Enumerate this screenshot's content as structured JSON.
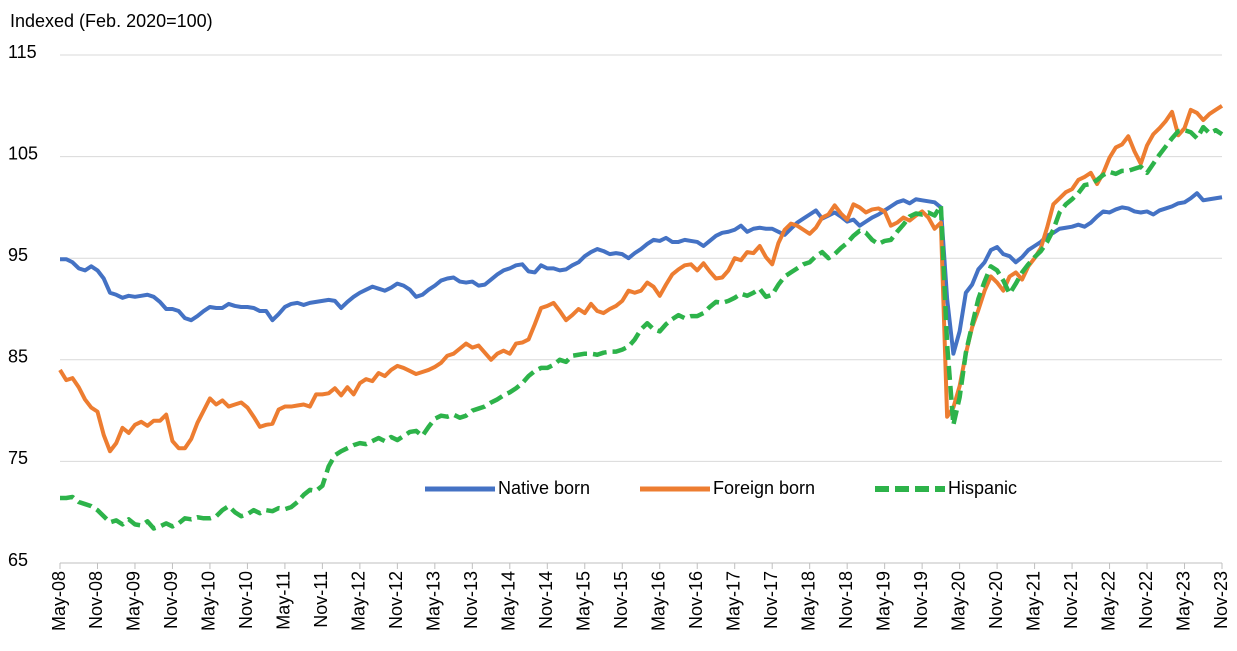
{
  "chart_data": {
    "type": "line",
    "ylabel": "Indexed (Feb. 2020=100)",
    "ylim": [
      65,
      115
    ],
    "yticks": [
      65,
      75,
      85,
      95,
      105,
      115
    ],
    "grid": true,
    "legend": "bottom",
    "categories": [
      "May-08",
      null,
      null,
      null,
      null,
      null,
      "Nov-08",
      null,
      null,
      null,
      null,
      null,
      "May-09",
      null,
      null,
      null,
      null,
      null,
      "Nov-09",
      null,
      null,
      null,
      null,
      null,
      "May-10",
      null,
      null,
      null,
      null,
      null,
      "Nov-10",
      null,
      null,
      null,
      null,
      null,
      "May-11",
      null,
      null,
      null,
      null,
      null,
      "Nov-11",
      null,
      null,
      null,
      null,
      null,
      "May-12",
      null,
      null,
      null,
      null,
      null,
      "Nov-12",
      null,
      null,
      null,
      null,
      null,
      "May-13",
      null,
      null,
      null,
      null,
      null,
      "Nov-13",
      null,
      null,
      null,
      null,
      null,
      "May-14",
      null,
      null,
      null,
      null,
      null,
      "Nov-14",
      null,
      null,
      null,
      null,
      null,
      "May-15",
      null,
      null,
      null,
      null,
      null,
      "Nov-15",
      null,
      null,
      null,
      null,
      null,
      "May-16",
      null,
      null,
      null,
      null,
      null,
      "Nov-16",
      null,
      null,
      null,
      null,
      null,
      "May-17",
      null,
      null,
      null,
      null,
      null,
      "Nov-17",
      null,
      null,
      null,
      null,
      null,
      "May-18",
      null,
      null,
      null,
      null,
      null,
      "Nov-18",
      null,
      null,
      null,
      null,
      null,
      "May-19",
      null,
      null,
      null,
      null,
      null,
      "Nov-19",
      null,
      null,
      null,
      null,
      null,
      "May-20",
      null,
      null,
      null,
      null,
      null,
      "Nov-20",
      null,
      null,
      null,
      null,
      null,
      "May-21",
      null,
      null,
      null,
      null,
      null,
      "Nov-21",
      null,
      null,
      null,
      null,
      null,
      "May-22",
      null,
      null,
      null,
      null,
      null,
      "Nov-22",
      null,
      null,
      null,
      null,
      null,
      "May-23",
      null,
      null,
      null,
      null,
      null,
      "Nov-23"
    ],
    "series": [
      {
        "name": "Native born",
        "color": "#4472c4",
        "dash": false,
        "values": [
          94.9,
          94.9,
          94.6,
          94.0,
          93.8,
          94.2,
          93.8,
          93.0,
          91.6,
          91.4,
          91.1,
          91.3,
          91.2,
          91.3,
          91.4,
          91.2,
          90.7,
          90.0,
          90.0,
          89.8,
          89.1,
          88.9,
          89.3,
          89.8,
          90.2,
          90.1,
          90.1,
          90.5,
          90.3,
          90.2,
          90.2,
          90.1,
          89.8,
          89.8,
          88.9,
          89.5,
          90.2,
          90.5,
          90.6,
          90.4,
          90.6,
          90.7,
          90.8,
          90.9,
          90.8,
          90.1,
          90.7,
          91.2,
          91.6,
          91.9,
          92.2,
          92.0,
          91.8,
          92.1,
          92.5,
          92.3,
          91.9,
          91.2,
          91.4,
          91.9,
          92.3,
          92.8,
          93.0,
          93.1,
          92.7,
          92.6,
          92.7,
          92.3,
          92.4,
          92.9,
          93.4,
          93.8,
          94.0,
          94.3,
          94.4,
          93.7,
          93.6,
          94.3,
          94.0,
          94.0,
          93.8,
          93.9,
          94.3,
          94.6,
          95.2,
          95.6,
          95.9,
          95.7,
          95.4,
          95.5,
          95.4,
          95.0,
          95.5,
          95.9,
          96.4,
          96.8,
          96.7,
          97.0,
          96.6,
          96.6,
          96.8,
          96.7,
          96.6,
          96.2,
          96.7,
          97.2,
          97.5,
          97.6,
          97.8,
          98.2,
          97.6,
          97.9,
          98.0,
          97.9,
          97.9,
          97.6,
          97.3,
          97.9,
          98.5,
          98.9,
          99.3,
          99.7,
          98.9,
          99.2,
          99.5,
          99.1,
          98.6,
          98.8,
          98.2,
          98.6,
          99.0,
          99.3,
          99.7,
          100.1,
          100.5,
          100.7,
          100.4,
          100.8,
          100.7,
          100.6,
          100.5,
          100.0,
          91.0,
          85.6,
          87.8,
          91.6,
          92.4,
          93.9,
          94.6,
          95.8,
          96.1,
          95.4,
          95.2,
          94.6,
          95.1,
          95.8,
          96.2,
          96.6,
          97.2,
          97.5,
          97.9,
          98.0,
          98.1,
          98.3,
          98.1,
          98.5,
          99.1,
          99.6,
          99.5,
          99.8,
          100.0,
          99.9,
          99.6,
          99.5,
          99.6,
          99.3,
          99.7,
          99.9,
          100.1,
          100.4,
          100.5,
          100.9,
          101.4,
          100.7,
          100.8,
          100.9,
          101.0
        ]
      },
      {
        "name": "Foreign born",
        "color": "#ed7d31",
        "dash": false,
        "values": [
          84.0,
          83.0,
          83.2,
          82.3,
          81.1,
          80.3,
          79.9,
          77.6,
          76.0,
          76.8,
          78.3,
          77.8,
          78.6,
          78.9,
          78.5,
          79.0,
          79.0,
          79.6,
          77.0,
          76.3,
          76.3,
          77.2,
          78.8,
          80.0,
          81.2,
          80.6,
          81.0,
          80.4,
          80.6,
          80.8,
          80.3,
          79.4,
          78.4,
          78.6,
          78.7,
          80.1,
          80.4,
          80.4,
          80.5,
          80.6,
          80.4,
          81.6,
          81.6,
          81.7,
          82.2,
          81.5,
          82.3,
          81.6,
          82.7,
          83.1,
          82.9,
          83.7,
          83.4,
          84.0,
          84.4,
          84.2,
          83.9,
          83.6,
          83.8,
          84.0,
          84.3,
          84.7,
          85.4,
          85.6,
          86.1,
          86.6,
          86.2,
          86.4,
          85.7,
          85.0,
          85.6,
          85.9,
          85.6,
          86.6,
          86.7,
          87.0,
          88.5,
          90.1,
          90.3,
          90.6,
          89.8,
          88.9,
          89.4,
          90.0,
          89.6,
          90.5,
          89.8,
          89.6,
          90.0,
          90.3,
          90.8,
          91.8,
          91.6,
          91.8,
          92.6,
          92.2,
          91.3,
          92.4,
          93.4,
          93.9,
          94.3,
          94.4,
          93.8,
          94.5,
          93.7,
          93.0,
          93.1,
          93.8,
          95.0,
          94.8,
          95.6,
          95.5,
          96.2,
          95.1,
          94.4,
          96.5,
          97.8,
          98.4,
          98.2,
          97.8,
          97.4,
          98.0,
          99.0,
          99.3,
          100.2,
          99.4,
          98.8,
          100.3,
          100.0,
          99.5,
          99.8,
          99.9,
          99.6,
          98.2,
          98.5,
          99.0,
          98.7,
          99.2,
          99.6,
          99.0,
          97.9,
          98.5,
          79.4,
          80.3,
          82.4,
          85.6,
          88.2,
          89.9,
          91.8,
          93.2,
          92.6,
          91.8,
          93.2,
          93.6,
          92.9,
          94.2,
          95.0,
          96.0,
          98.0,
          100.3,
          100.9,
          101.5,
          101.8,
          102.7,
          103.0,
          103.4,
          102.3,
          103.4,
          104.9,
          105.9,
          106.2,
          107.0,
          105.5,
          104.3,
          106.1,
          107.2,
          107.8,
          108.5,
          109.4,
          107.1,
          107.8,
          109.6,
          109.3,
          108.6,
          109.2,
          109.6,
          110.0
        ]
      },
      {
        "name": "Hispanic",
        "color": "#2db34a",
        "dash": true,
        "values": [
          71.4,
          71.4,
          71.5,
          71.0,
          70.8,
          70.6,
          70.2,
          69.6,
          69.0,
          69.2,
          68.8,
          69.3,
          68.8,
          68.7,
          69.1,
          68.4,
          68.6,
          68.9,
          68.6,
          68.9,
          69.4,
          69.3,
          69.5,
          69.4,
          69.4,
          69.6,
          70.2,
          70.6,
          70.0,
          69.6,
          69.8,
          70.2,
          69.9,
          70.2,
          70.1,
          70.4,
          70.3,
          70.5,
          71.0,
          71.7,
          72.2,
          72.1,
          72.6,
          74.5,
          75.6,
          76.0,
          76.3,
          76.6,
          76.8,
          76.7,
          77.0,
          77.3,
          77.0,
          77.4,
          77.1,
          77.5,
          77.9,
          78.0,
          77.5,
          78.4,
          79.2,
          79.5,
          79.4,
          79.6,
          79.3,
          79.5,
          80.0,
          80.2,
          80.4,
          80.8,
          81.1,
          81.5,
          81.8,
          82.2,
          82.7,
          83.4,
          83.9,
          84.2,
          84.2,
          84.5,
          85.0,
          84.8,
          85.4,
          85.5,
          85.6,
          85.6,
          85.5,
          85.7,
          85.8,
          85.8,
          86.0,
          86.3,
          87.0,
          88.0,
          88.6,
          88.0,
          87.8,
          88.5,
          89.0,
          89.4,
          89.1,
          89.3,
          89.3,
          89.6,
          90.2,
          90.7,
          90.6,
          90.8,
          91.1,
          91.5,
          91.3,
          91.6,
          92.0,
          91.2,
          91.4,
          92.4,
          93.2,
          93.6,
          94.0,
          94.4,
          94.6,
          95.2,
          95.6,
          95.0,
          95.4,
          96.0,
          96.5,
          97.2,
          97.7,
          97.5,
          96.8,
          96.4,
          96.7,
          96.8,
          97.6,
          98.3,
          99.1,
          99.4,
          99.3,
          99.5,
          99.2,
          100.2,
          86.5,
          78.6,
          81.3,
          85.7,
          88.4,
          91.0,
          92.7,
          94.2,
          93.8,
          92.8,
          91.5,
          92.5,
          93.6,
          94.4,
          95.1,
          95.7,
          96.6,
          97.8,
          99.5,
          100.3,
          100.8,
          101.4,
          102.2,
          102.3,
          102.7,
          103.2,
          103.5,
          103.3,
          103.6,
          103.6,
          103.8,
          104.0,
          103.4,
          104.3,
          105.2,
          106.0,
          106.8,
          107.5,
          107.6,
          107.4,
          106.8,
          107.9,
          107.3,
          107.6,
          107.2
        ]
      }
    ]
  }
}
